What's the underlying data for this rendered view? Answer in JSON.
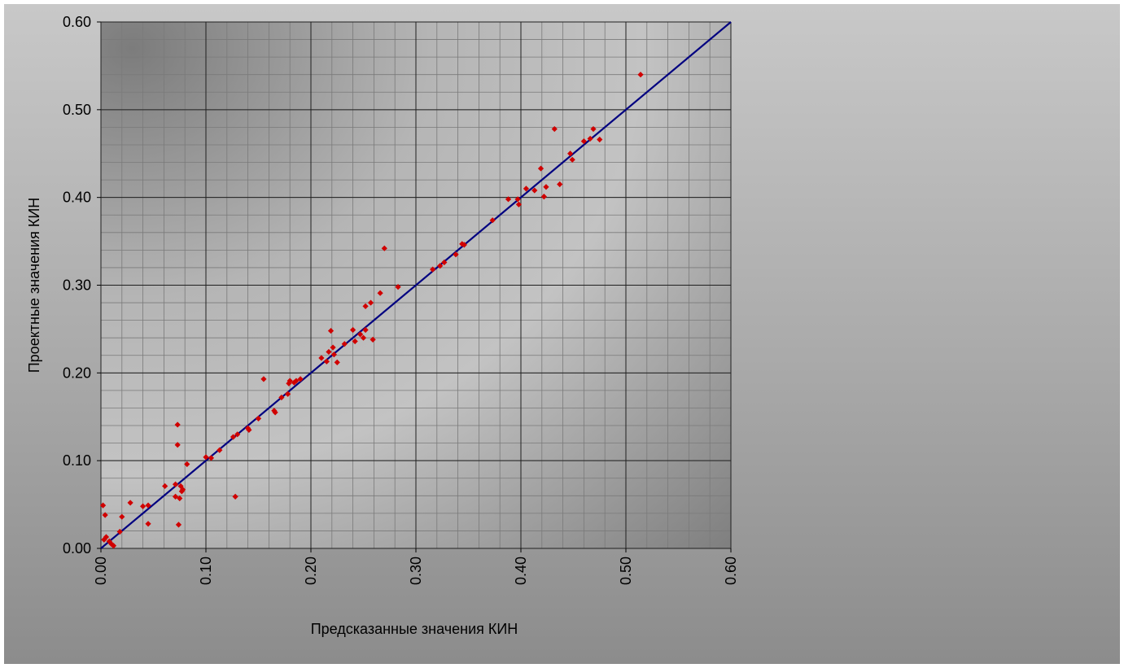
{
  "chart_data": {
    "type": "scatter",
    "title": "",
    "xlabel": "Предсказанные значения КИН",
    "ylabel": "Проектные значения КИН",
    "xlim": [
      0,
      0.6
    ],
    "ylim": [
      0,
      0.6
    ],
    "xticks": [
      "0.00",
      "0.10",
      "0.20",
      "0.30",
      "0.40",
      "0.50",
      "0.60"
    ],
    "yticks": [
      "0.00",
      "0.10",
      "0.20",
      "0.30",
      "0.40",
      "0.50",
      "0.60"
    ],
    "major_step": 0.1,
    "minor_step": 0.02,
    "grid": true,
    "legend": "none",
    "reference_line": {
      "from": [
        0,
        0
      ],
      "to": [
        0.6,
        0.6
      ],
      "color": "#000080"
    },
    "point_color": "#d00000",
    "points": [
      [
        0.002,
        0.049
      ],
      [
        0.004,
        0.038
      ],
      [
        0.003,
        0.01
      ],
      [
        0.005,
        0.013
      ],
      [
        0.008,
        0.008
      ],
      [
        0.01,
        0.005
      ],
      [
        0.012,
        0.003
      ],
      [
        0.018,
        0.019
      ],
      [
        0.02,
        0.036
      ],
      [
        0.028,
        0.052
      ],
      [
        0.04,
        0.048
      ],
      [
        0.045,
        0.049
      ],
      [
        0.045,
        0.028
      ],
      [
        0.061,
        0.071
      ],
      [
        0.071,
        0.073
      ],
      [
        0.071,
        0.059
      ],
      [
        0.073,
        0.141
      ],
      [
        0.073,
        0.118
      ],
      [
        0.074,
        0.027
      ],
      [
        0.075,
        0.057
      ],
      [
        0.076,
        0.071
      ],
      [
        0.077,
        0.065
      ],
      [
        0.078,
        0.067
      ],
      [
        0.082,
        0.096
      ],
      [
        0.1,
        0.104
      ],
      [
        0.105,
        0.103
      ],
      [
        0.113,
        0.112
      ],
      [
        0.126,
        0.127
      ],
      [
        0.128,
        0.059
      ],
      [
        0.13,
        0.13
      ],
      [
        0.14,
        0.137
      ],
      [
        0.141,
        0.135
      ],
      [
        0.15,
        0.148
      ],
      [
        0.155,
        0.193
      ],
      [
        0.165,
        0.157
      ],
      [
        0.166,
        0.155
      ],
      [
        0.172,
        0.172
      ],
      [
        0.178,
        0.176
      ],
      [
        0.179,
        0.188
      ],
      [
        0.18,
        0.191
      ],
      [
        0.184,
        0.189
      ],
      [
        0.186,
        0.191
      ],
      [
        0.19,
        0.193
      ],
      [
        0.21,
        0.217
      ],
      [
        0.215,
        0.213
      ],
      [
        0.217,
        0.224
      ],
      [
        0.219,
        0.248
      ],
      [
        0.221,
        0.229
      ],
      [
        0.222,
        0.221
      ],
      [
        0.225,
        0.212
      ],
      [
        0.232,
        0.233
      ],
      [
        0.24,
        0.249
      ],
      [
        0.242,
        0.236
      ],
      [
        0.247,
        0.244
      ],
      [
        0.25,
        0.24
      ],
      [
        0.252,
        0.276
      ],
      [
        0.252,
        0.249
      ],
      [
        0.257,
        0.28
      ],
      [
        0.259,
        0.238
      ],
      [
        0.266,
        0.291
      ],
      [
        0.27,
        0.342
      ],
      [
        0.283,
        0.298
      ],
      [
        0.316,
        0.318
      ],
      [
        0.323,
        0.322
      ],
      [
        0.327,
        0.326
      ],
      [
        0.338,
        0.335
      ],
      [
        0.344,
        0.347
      ],
      [
        0.346,
        0.346
      ],
      [
        0.373,
        0.374
      ],
      [
        0.388,
        0.398
      ],
      [
        0.397,
        0.398
      ],
      [
        0.398,
        0.392
      ],
      [
        0.405,
        0.41
      ],
      [
        0.413,
        0.408
      ],
      [
        0.419,
        0.433
      ],
      [
        0.422,
        0.401
      ],
      [
        0.424,
        0.412
      ],
      [
        0.432,
        0.478
      ],
      [
        0.437,
        0.415
      ],
      [
        0.447,
        0.45
      ],
      [
        0.449,
        0.443
      ],
      [
        0.46,
        0.464
      ],
      [
        0.466,
        0.467
      ],
      [
        0.469,
        0.478
      ],
      [
        0.475,
        0.466
      ],
      [
        0.514,
        0.54
      ]
    ]
  }
}
